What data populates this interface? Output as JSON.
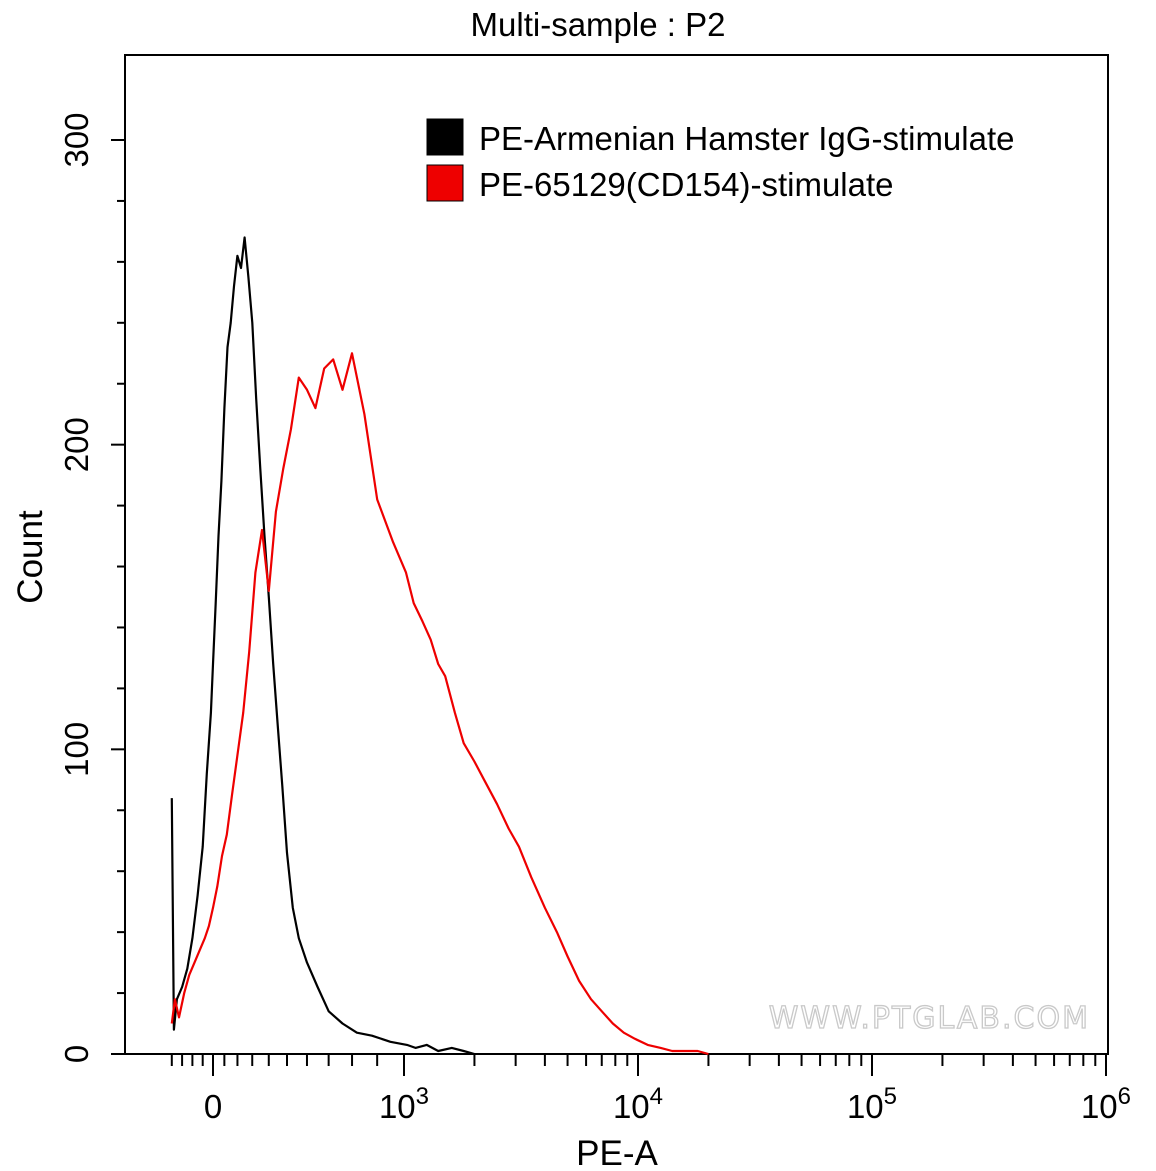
{
  "chart_data": {
    "type": "line",
    "title": "Multi-sample : P2",
    "xlabel": "PE-A",
    "ylabel": "Count",
    "x_scale": "biexponential",
    "xlim": [
      -400,
      1000000
    ],
    "ylim": [
      0,
      310
    ],
    "x_ticks": [
      {
        "value": 0,
        "base": "0",
        "exp": ""
      },
      {
        "value": 1000,
        "base": "10",
        "exp": "3"
      },
      {
        "value": 10000,
        "base": "10",
        "exp": "4"
      },
      {
        "value": 100000,
        "base": "10",
        "exp": "5"
      },
      {
        "value": 1000000,
        "base": "10",
        "exp": "6"
      }
    ],
    "y_ticks": [
      {
        "value": 0,
        "label": "0"
      },
      {
        "value": 100,
        "label": "100"
      },
      {
        "value": 200,
        "label": "200"
      },
      {
        "value": 300,
        "label": "300"
      }
    ],
    "legend": {
      "position": "top-right"
    },
    "series": [
      {
        "name": "PE-Armenian Hamster IgG-stimulate",
        "color": "#000000",
        "x": [
          -400,
          -380,
          -350,
          -300,
          -250,
          -200,
          -150,
          -100,
          -60,
          -20,
          0,
          25,
          50,
          75,
          100,
          125,
          150,
          175,
          200,
          225,
          250,
          275,
          300,
          325,
          350,
          375,
          400,
          425,
          450,
          475,
          500,
          530,
          560,
          600,
          650,
          700,
          760,
          820,
          880,
          950,
          1030,
          1120,
          1250,
          1400,
          1600,
          1800,
          2000
        ],
        "y": [
          84,
          8,
          18,
          22,
          28,
          38,
          52,
          68,
          92,
          112,
          128,
          148,
          170,
          188,
          212,
          232,
          240,
          252,
          262,
          258,
          268,
          255,
          240,
          215,
          192,
          170,
          150,
          128,
          108,
          88,
          66,
          48,
          38,
          30,
          22,
          14,
          10,
          7,
          6,
          4,
          3,
          2,
          3,
          1,
          2,
          1,
          0
        ]
      },
      {
        "name": "PE-65129(CD154)-stimulate",
        "color": "#ee0000",
        "x": [
          -400,
          -370,
          -330,
          -280,
          -230,
          -180,
          -130,
          -80,
          -40,
          0,
          40,
          80,
          120,
          160,
          200,
          240,
          280,
          320,
          360,
          400,
          440,
          480,
          520,
          560,
          600,
          640,
          680,
          720,
          760,
          800,
          850,
          900,
          960,
          1020,
          1100,
          1200,
          1300,
          1400,
          1500,
          1650,
          1800,
          2000,
          2200,
          2500,
          2800,
          3100,
          3500,
          4000,
          4500,
          5000,
          5600,
          6300,
          7000,
          7800,
          8700,
          9700,
          11000,
          12500,
          14000,
          16000,
          18000,
          20000
        ],
        "y": [
          10,
          18,
          12,
          20,
          26,
          30,
          34,
          38,
          42,
          48,
          55,
          65,
          72,
          85,
          98,
          112,
          132,
          158,
          172,
          152,
          178,
          192,
          205,
          222,
          218,
          212,
          225,
          228,
          218,
          230,
          210,
          182,
          168,
          158,
          148,
          142,
          136,
          128,
          124,
          112,
          102,
          96,
          90,
          82,
          74,
          68,
          58,
          48,
          40,
          32,
          24,
          18,
          14,
          10,
          7,
          5,
          3,
          2,
          1,
          1,
          1,
          0
        ]
      }
    ]
  },
  "watermark": "WWW.PTGLAB.COM"
}
